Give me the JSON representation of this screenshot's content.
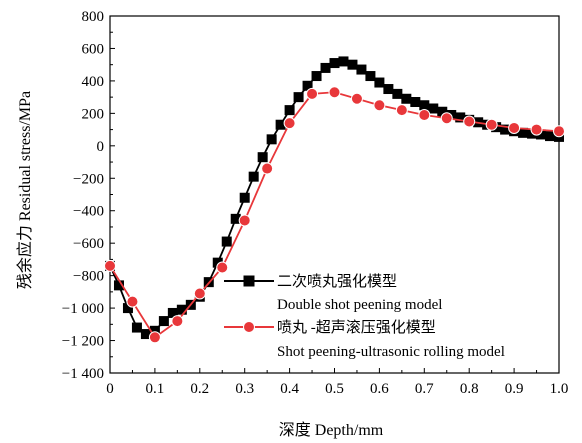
{
  "chart_data": {
    "type": "line",
    "title": "",
    "xlabel": "深度 Depth/mm",
    "ylabel": "残余应力 Residual stress/MPa",
    "xlim": [
      0,
      1.0
    ],
    "ylim": [
      -1400,
      800
    ],
    "x_ticks": [
      "0",
      "0.1",
      "0.2",
      "0.3",
      "0.4",
      "0.5",
      "0.6",
      "0.7",
      "0.8",
      "0.9",
      "1.0"
    ],
    "y_ticks": [
      "800",
      "600",
      "400",
      "200",
      "0",
      "−200",
      "−400",
      "−600",
      "−800",
      "−1 000",
      "−1 200",
      "−1 400"
    ],
    "grid": false,
    "legend_position": "lower-right",
    "series": [
      {
        "name_cn": "二次喷丸强化模型",
        "name_en": "Double shot peening model",
        "color": "#000000",
        "marker": "square",
        "x": [
          0,
          0.02,
          0.04,
          0.06,
          0.08,
          0.1,
          0.12,
          0.14,
          0.16,
          0.18,
          0.2,
          0.22,
          0.24,
          0.26,
          0.28,
          0.3,
          0.32,
          0.34,
          0.36,
          0.38,
          0.4,
          0.42,
          0.44,
          0.46,
          0.48,
          0.5,
          0.52,
          0.54,
          0.56,
          0.58,
          0.6,
          0.62,
          0.64,
          0.66,
          0.68,
          0.7,
          0.72,
          0.74,
          0.76,
          0.78,
          0.8,
          0.82,
          0.84,
          0.86,
          0.88,
          0.9,
          0.92,
          0.94,
          0.96,
          0.98,
          1.0
        ],
        "y": [
          -740,
          -860,
          -1000,
          -1120,
          -1160,
          -1140,
          -1080,
          -1030,
          -1010,
          -980,
          -930,
          -840,
          -720,
          -590,
          -450,
          -320,
          -190,
          -70,
          40,
          130,
          220,
          300,
          370,
          430,
          480,
          510,
          520,
          500,
          470,
          430,
          390,
          350,
          320,
          290,
          270,
          250,
          230,
          210,
          190,
          175,
          160,
          145,
          130,
          115,
          100,
          90,
          80,
          75,
          70,
          60,
          55
        ]
      },
      {
        "name_cn": "喷丸 -超声滚压强化模型",
        "name_en": "Shot peening-ultrasonic rolling model",
        "color": "#e8373a",
        "marker": "circle",
        "x": [
          0,
          0.05,
          0.1,
          0.15,
          0.2,
          0.25,
          0.3,
          0.35,
          0.4,
          0.45,
          0.5,
          0.55,
          0.6,
          0.65,
          0.7,
          0.75,
          0.8,
          0.85,
          0.9,
          0.95,
          1.0
        ],
        "y": [
          -740,
          -960,
          -1180,
          -1080,
          -910,
          -750,
          -460,
          -140,
          140,
          320,
          330,
          290,
          250,
          220,
          190,
          170,
          150,
          130,
          110,
          100,
          90
        ]
      }
    ]
  }
}
